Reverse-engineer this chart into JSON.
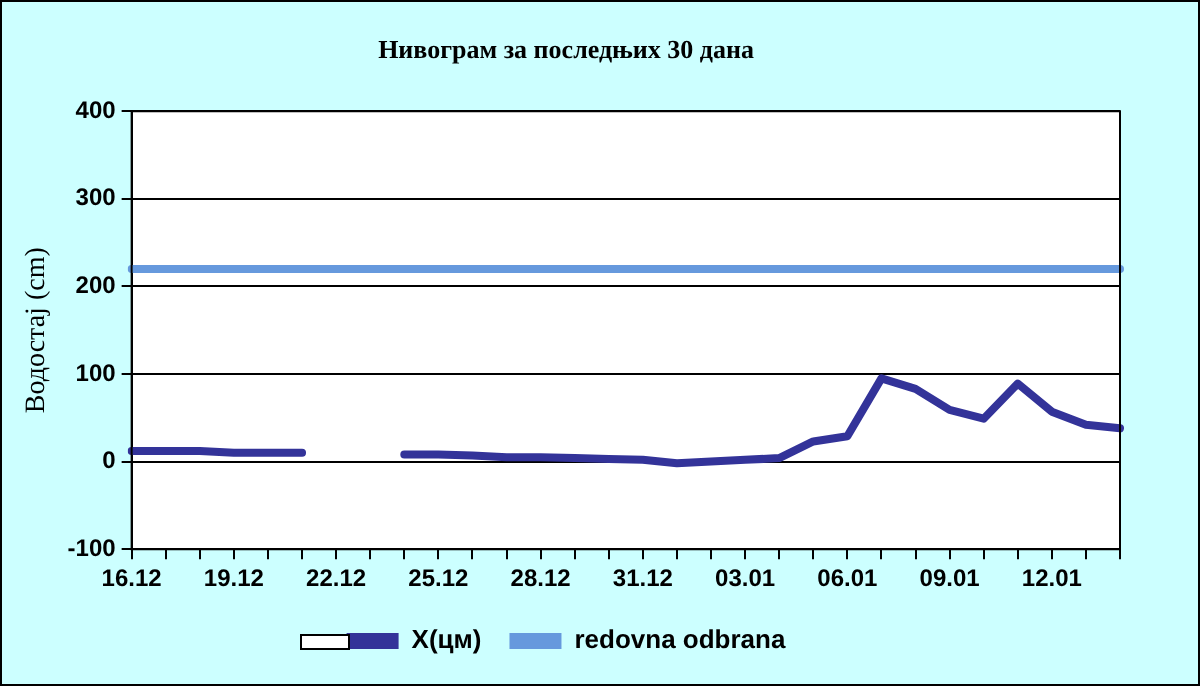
{
  "chart_data": {
    "type": "line",
    "title": "Нивограм за последњих 30 дана",
    "ylabel": "Водостај (cm)",
    "categories": [
      "16.12",
      null,
      null,
      "19.12",
      null,
      null,
      "22.12",
      null,
      null,
      "25.12",
      null,
      null,
      "28.12",
      null,
      null,
      "31.12",
      null,
      null,
      "03.01",
      null,
      null,
      "06.01",
      null,
      null,
      "09.01",
      null,
      null,
      "12.01",
      null,
      null
    ],
    "series": [
      {
        "name": "X(цм)",
        "color": "#333399",
        "values": [
          12,
          12,
          12,
          10,
          10,
          10,
          null,
          null,
          8,
          8,
          7,
          5,
          5,
          4,
          3,
          2,
          -2,
          0,
          2,
          4,
          23,
          29,
          95,
          83,
          59,
          49,
          89,
          57,
          42,
          38
        ]
      },
      {
        "name": "redovna odbrana",
        "color": "#6699dd",
        "values": [
          220,
          220,
          220,
          220,
          220,
          220,
          220,
          220,
          220,
          220,
          220,
          220,
          220,
          220,
          220,
          220,
          220,
          220,
          220,
          220,
          220,
          220,
          220,
          220,
          220,
          220,
          220,
          220,
          220,
          220
        ]
      }
    ],
    "ylim": [
      -100,
      400
    ],
    "yticks": [
      -100,
      0,
      100,
      200,
      300,
      400
    ],
    "grid": "y",
    "legend": "bottom",
    "marker": "none"
  }
}
